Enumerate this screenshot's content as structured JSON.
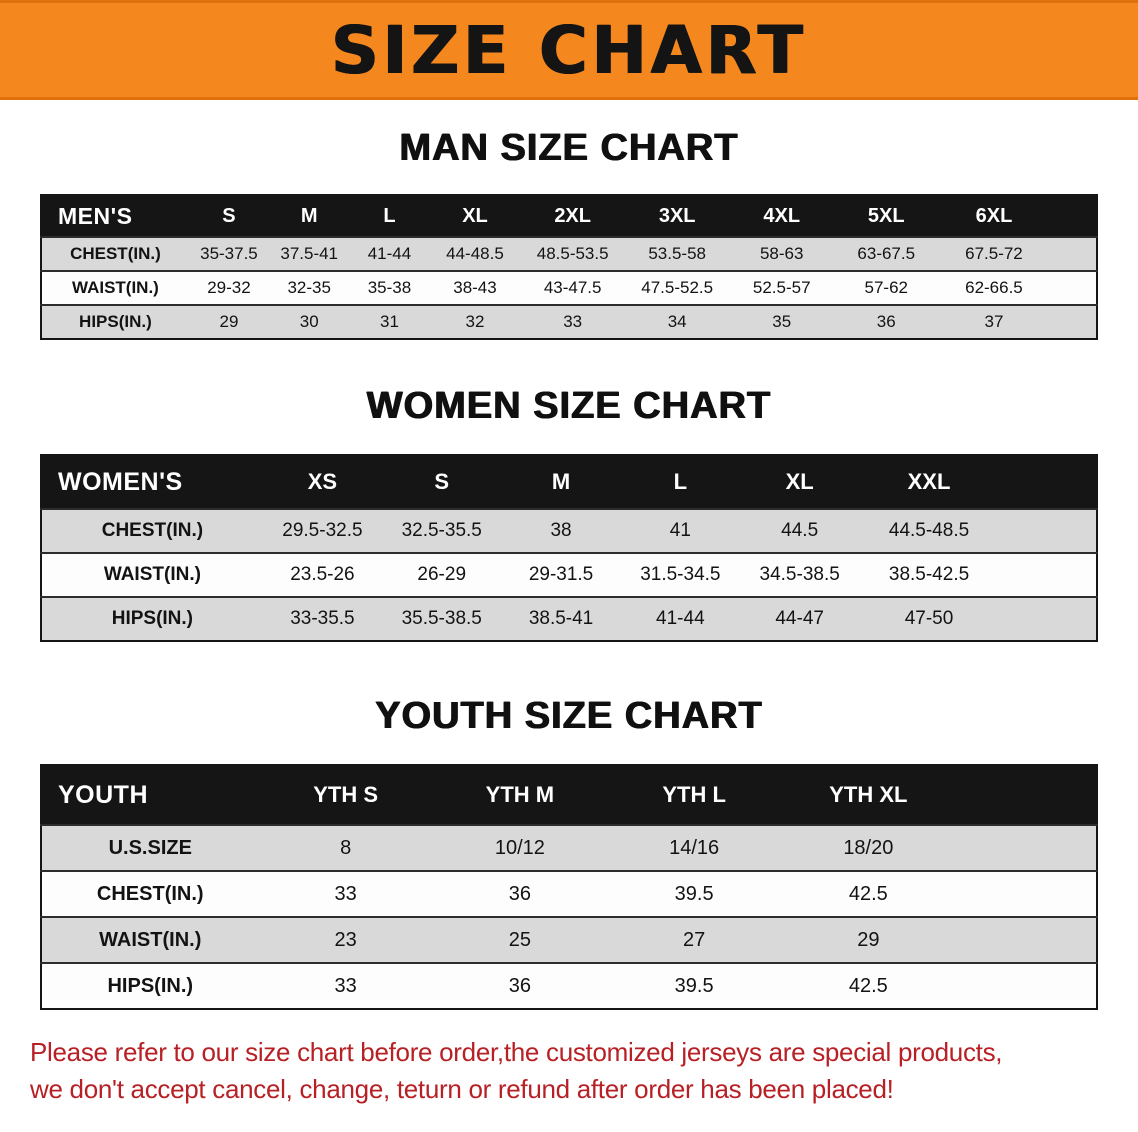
{
  "banner": {
    "title": "SIZE CHART",
    "bg_color": "#F4871E",
    "text_color": "#141414"
  },
  "sections": [
    {
      "id": "men",
      "heading": "MAN SIZE CHART",
      "table": {
        "header": [
          "MEN'S",
          "S",
          "M",
          "L",
          "XL",
          "2XL",
          "3XL",
          "4XL",
          "5XL",
          "6XL"
        ],
        "rows": [
          {
            "label": "CHEST(IN.)",
            "values": [
              "35-37.5",
              "37.5-41",
              "41-44",
              "44-48.5",
              "48.5-53.5",
              "53.5-58",
              "58-63",
              "63-67.5",
              "67.5-72"
            ]
          },
          {
            "label": "WAIST(IN.)",
            "values": [
              "29-32",
              "32-35",
              "35-38",
              "38-43",
              "43-47.5",
              "47.5-52.5",
              "52.5-57",
              "57-62",
              "62-66.5"
            ]
          },
          {
            "label": "HIPS(IN.)",
            "values": [
              "29",
              "30",
              "31",
              "32",
              "33",
              "34",
              "35",
              "36",
              "37"
            ]
          }
        ]
      }
    },
    {
      "id": "women",
      "heading": "WOMEN SIZE CHART",
      "table": {
        "header": [
          "WOMEN'S",
          "XS",
          "S",
          "M",
          "L",
          "XL",
          "XXL"
        ],
        "rows": [
          {
            "label": "CHEST(IN.)",
            "values": [
              "29.5-32.5",
              "32.5-35.5",
              "38",
              "41",
              "44.5",
              "44.5-48.5"
            ]
          },
          {
            "label": "WAIST(IN.)",
            "values": [
              "23.5-26",
              "26-29",
              "29-31.5",
              "31.5-34.5",
              "34.5-38.5",
              "38.5-42.5"
            ]
          },
          {
            "label": "HIPS(IN.)",
            "values": [
              "33-35.5",
              "35.5-38.5",
              "38.5-41",
              "41-44",
              "44-47",
              "47-50"
            ]
          }
        ]
      }
    },
    {
      "id": "youth",
      "heading": "YOUTH SIZE CHART",
      "table": {
        "header": [
          "YOUTH",
          "YTH S",
          "YTH M",
          "YTH L",
          "YTH XL"
        ],
        "rows": [
          {
            "label": "U.S.SIZE",
            "values": [
              "8",
              "10/12",
              "14/16",
              "18/20"
            ]
          },
          {
            "label": "CHEST(IN.)",
            "values": [
              "33",
              "36",
              "39.5",
              "42.5"
            ]
          },
          {
            "label": "WAIST(IN.)",
            "values": [
              "23",
              "25",
              "27",
              "29"
            ]
          },
          {
            "label": "HIPS(IN.)",
            "values": [
              "33",
              "36",
              "39.5",
              "42.5"
            ]
          }
        ]
      }
    }
  ],
  "footer": {
    "text_color": "#B72025",
    "lines": [
      "Please refer to our size chart before order,the customized jerseys are special products,",
      "we don't accept cancel, change, teturn or refund after order has been placed!"
    ]
  }
}
